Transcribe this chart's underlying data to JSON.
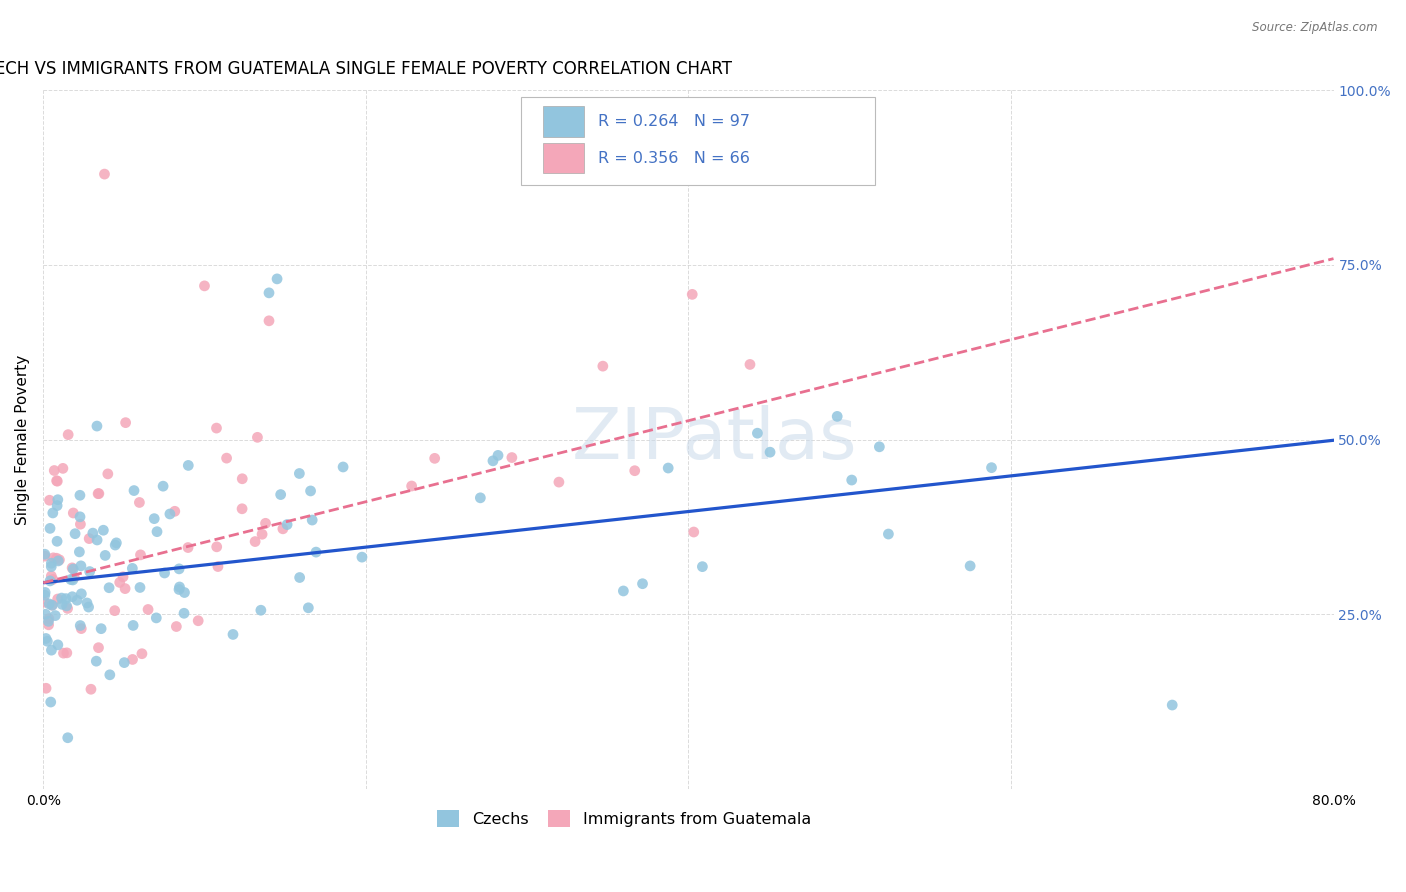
{
  "title": "CZECH VS IMMIGRANTS FROM GUATEMALA SINGLE FEMALE POVERTY CORRELATION CHART",
  "source": "Source: ZipAtlas.com",
  "ylabel": "Single Female Poverty",
  "x_min": 0.0,
  "x_max": 0.8,
  "y_min": 0.0,
  "y_max": 1.0,
  "czech_color": "#92C5DE",
  "guatemala_color": "#F4A7B9",
  "czech_line_color": "#2255CC",
  "guatemala_line_color": "#E87090",
  "watermark": "ZIPatlas",
  "legend_label_czech": "Czechs",
  "legend_label_guatemala": "Immigrants from Guatemala",
  "background_color": "#ffffff",
  "grid_color": "#cccccc",
  "right_tick_color": "#4472C4",
  "title_fontsize": 12,
  "axis_label_fontsize": 11,
  "tick_fontsize": 10,
  "czech_line_intercept": 0.295,
  "czech_line_slope": 0.255,
  "guatemala_line_intercept": 0.295,
  "guatemala_line_slope": 0.58
}
